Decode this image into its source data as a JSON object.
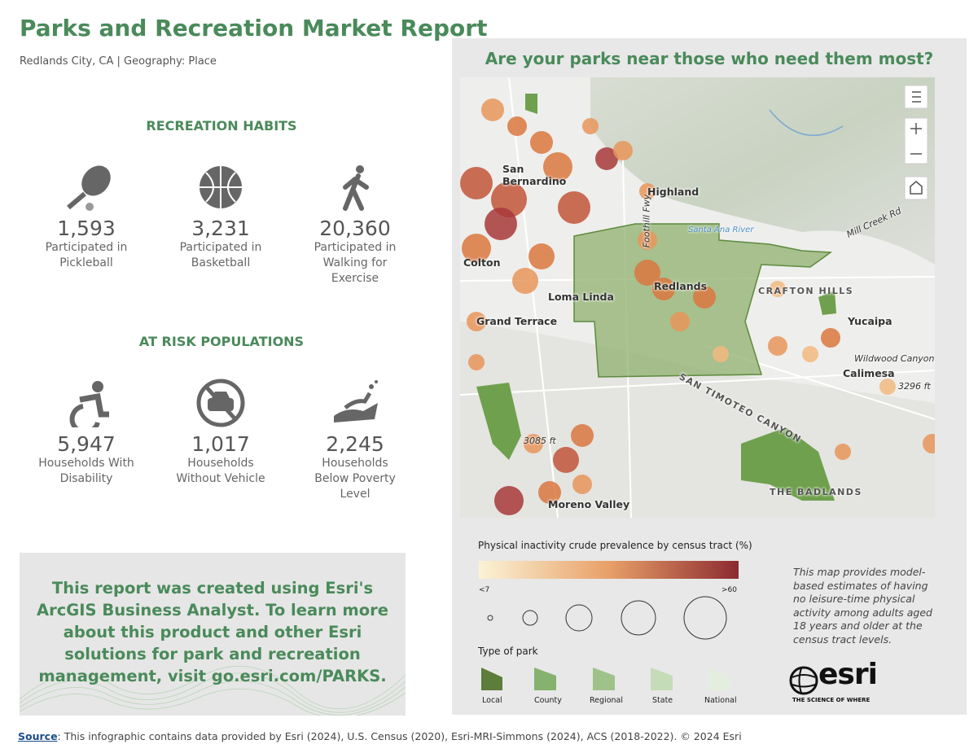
{
  "header": {
    "title": "Parks and Recreation Market Report",
    "subtitle": "Redlands City, CA | Geography: Place"
  },
  "recreation": {
    "heading": "RECREATION HABITS",
    "items": [
      {
        "value": "1,593",
        "label": "Participated in Pickleball"
      },
      {
        "value": "3,231",
        "label": "Participated in Basketball"
      },
      {
        "value": "20,360",
        "label": "Participated in Walking for Exercise"
      }
    ]
  },
  "at_risk": {
    "heading": "AT RISK POPULATIONS",
    "items": [
      {
        "value": "5,947",
        "label": "Households With Disability"
      },
      {
        "value": "1,017",
        "label": "Households Without Vehicle"
      },
      {
        "value": "2,245",
        "label": "Households Below Poverty Level"
      }
    ]
  },
  "promo": {
    "text": "This report was created using Esri's ArcGIS Business Analyst. To learn more about this product and other Esri solutions for park and recreation management, visit go.esri.com/PARKS."
  },
  "map": {
    "title": "Are your parks near those who need them most?",
    "labels": [
      "San Bernardino",
      "Highland",
      "Colton",
      "Loma Linda",
      "Redlands",
      "Grand Terrace",
      "CRAFTON HILLS",
      "Yucaipa",
      "Calimesa",
      "Moreno Valley",
      "THE BADLANDS",
      "SAN TIMOTEO CANYON",
      "Santa Ana River",
      "Foothill Fwy",
      "Mill Creek Rd",
      "Wildwood Canyon Rd",
      "3296 ft",
      "3085 ft"
    ]
  },
  "legend": {
    "title": "Physical inactivity crude prevalence by census tract (%)",
    "min": "<7",
    "max": ">60",
    "park_type_title": "Type of park",
    "park_types": [
      "Local",
      "County",
      "Regional",
      "State",
      "National"
    ],
    "note": "This map provides model-based estimates of having no leisure-time physical activity among adults aged 18 years and older at the census tract levels.",
    "logo": "esri",
    "tagline": "THE SCIENCE OF WHERE"
  },
  "footer": {
    "source_label": "Source",
    "text": ": This infographic contains data provided by Esri (2024), U.S. Census (2020), Esri-MRI-Simmons (2024), ACS (2018-2022). © 2024 Esri"
  }
}
